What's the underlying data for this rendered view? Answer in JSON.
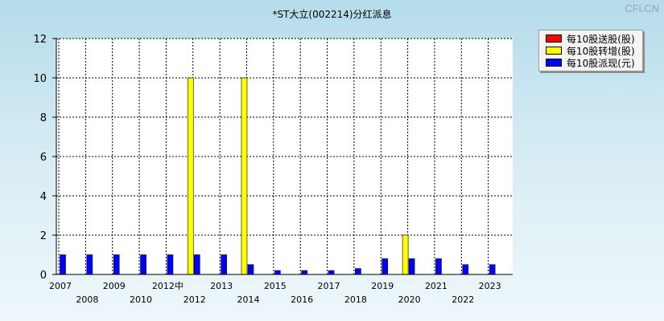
{
  "title": "*ST大立(002214)分红派息",
  "watermark": "CFi.CN",
  "colors": {
    "songgu": "#ff0000",
    "zhuanzeng": "#ffff00",
    "paixian": "#0000ff"
  },
  "legend": [
    {
      "label": "每10股送股(股)",
      "color": "#ff0000"
    },
    {
      "label": "每10股转增(股)",
      "color": "#ffff00"
    },
    {
      "label": "每10股派现(元)",
      "color": "#0000ff"
    }
  ],
  "chart_data": {
    "type": "bar",
    "title": "*ST大立(002214)分红派息",
    "ylim": [
      0,
      12
    ],
    "yticks": [
      0,
      2,
      4,
      6,
      8,
      10,
      12
    ],
    "grid": true,
    "legend_position": "top-right",
    "categories": [
      "2007",
      "2008",
      "2009",
      "2010",
      "2012中",
      "2012",
      "2013",
      "2014",
      "2015",
      "2016",
      "2017",
      "2018",
      "2019",
      "2020",
      "2021",
      "2022",
      "2023"
    ],
    "series": [
      {
        "name": "每10股送股(股)",
        "color": "#ff0000",
        "values": [
          0,
          0,
          0,
          0,
          0,
          0,
          0,
          0,
          0,
          0,
          0,
          0,
          0,
          0,
          0,
          0,
          0
        ]
      },
      {
        "name": "每10股转增(股)",
        "color": "#ffff00",
        "values": [
          0,
          0,
          0,
          0,
          0,
          10,
          0,
          10,
          0,
          0,
          0,
          0,
          0,
          2,
          0,
          0,
          0
        ]
      },
      {
        "name": "每10股派现(元)",
        "color": "#0000ff",
        "values": [
          1,
          1,
          1,
          1,
          1,
          1,
          1,
          0.5,
          0.2,
          0.2,
          0.2,
          0.3,
          0.8,
          0.8,
          0.8,
          0.5,
          0.5
        ]
      }
    ]
  }
}
